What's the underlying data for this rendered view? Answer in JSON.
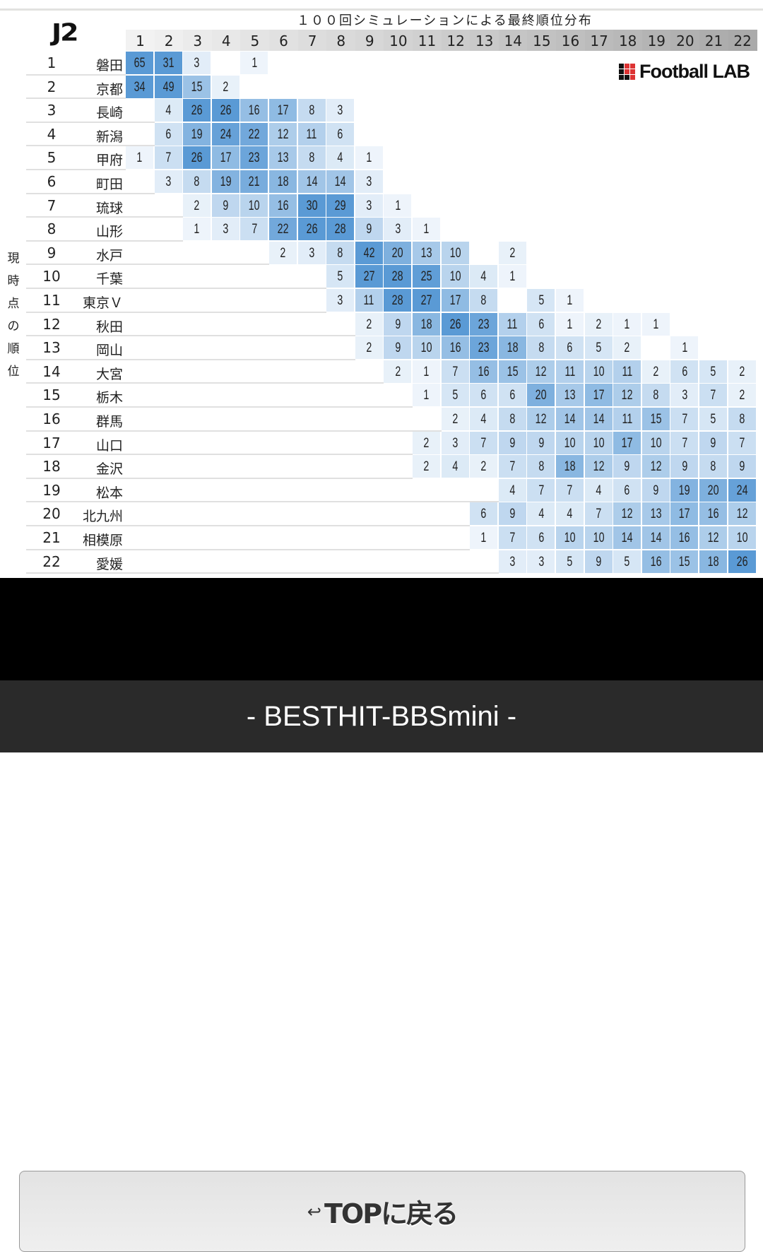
{
  "chart_data": {
    "type": "heatmap",
    "title": "１００回シミュレーションによる最終順位分布",
    "league_logo": "J2",
    "brand_logo": "Football LAB",
    "ylabel": "現時点の順位",
    "columns": [
      "1",
      "2",
      "3",
      "4",
      "5",
      "6",
      "7",
      "8",
      "9",
      "10",
      "11",
      "12",
      "13",
      "14",
      "15",
      "16",
      "17",
      "18",
      "19",
      "20",
      "21",
      "22"
    ],
    "color_low": "#f4f8fc",
    "color_high": "#5a9ad5",
    "rows": [
      {
        "rank": "1",
        "team": "磐田",
        "values": [
          65,
          31,
          3,
          null,
          1,
          null,
          null,
          null,
          null,
          null,
          null,
          null,
          null,
          null,
          null,
          null,
          null,
          null,
          null,
          null,
          null,
          null
        ]
      },
      {
        "rank": "2",
        "team": "京都",
        "values": [
          34,
          49,
          15,
          2,
          null,
          null,
          null,
          null,
          null,
          null,
          null,
          null,
          null,
          null,
          null,
          null,
          null,
          null,
          null,
          null,
          null,
          null
        ]
      },
      {
        "rank": "3",
        "team": "長崎",
        "values": [
          null,
          4,
          26,
          26,
          16,
          17,
          8,
          3,
          null,
          null,
          null,
          null,
          null,
          null,
          null,
          null,
          null,
          null,
          null,
          null,
          null,
          null
        ]
      },
      {
        "rank": "4",
        "team": "新潟",
        "values": [
          null,
          6,
          19,
          24,
          22,
          12,
          11,
          6,
          null,
          null,
          null,
          null,
          null,
          null,
          null,
          null,
          null,
          null,
          null,
          null,
          null,
          null
        ]
      },
      {
        "rank": "5",
        "team": "甲府",
        "values": [
          1,
          7,
          26,
          17,
          23,
          13,
          8,
          4,
          1,
          null,
          null,
          null,
          null,
          null,
          null,
          null,
          null,
          null,
          null,
          null,
          null,
          null
        ]
      },
      {
        "rank": "6",
        "team": "町田",
        "values": [
          null,
          3,
          8,
          19,
          21,
          18,
          14,
          14,
          3,
          null,
          null,
          null,
          null,
          null,
          null,
          null,
          null,
          null,
          null,
          null,
          null,
          null
        ]
      },
      {
        "rank": "7",
        "team": "琉球",
        "values": [
          null,
          null,
          2,
          9,
          10,
          16,
          30,
          29,
          3,
          1,
          null,
          null,
          null,
          null,
          null,
          null,
          null,
          null,
          null,
          null,
          null,
          null
        ]
      },
      {
        "rank": "8",
        "team": "山形",
        "values": [
          null,
          null,
          1,
          3,
          7,
          22,
          26,
          28,
          9,
          3,
          1,
          null,
          null,
          null,
          null,
          null,
          null,
          null,
          null,
          null,
          null,
          null
        ]
      },
      {
        "rank": "9",
        "team": "水戸",
        "values": [
          null,
          null,
          null,
          null,
          null,
          2,
          3,
          8,
          42,
          20,
          13,
          10,
          null,
          2,
          null,
          null,
          null,
          null,
          null,
          null,
          null,
          null
        ]
      },
      {
        "rank": "10",
        "team": "千葉",
        "values": [
          null,
          null,
          null,
          null,
          null,
          null,
          null,
          5,
          27,
          28,
          25,
          10,
          4,
          1,
          null,
          null,
          null,
          null,
          null,
          null,
          null,
          null
        ]
      },
      {
        "rank": "11",
        "team": "東京Ｖ",
        "values": [
          null,
          null,
          null,
          null,
          null,
          null,
          null,
          3,
          11,
          28,
          27,
          17,
          8,
          null,
          5,
          1,
          null,
          null,
          null,
          null,
          null,
          null
        ]
      },
      {
        "rank": "12",
        "team": "秋田",
        "values": [
          null,
          null,
          null,
          null,
          null,
          null,
          null,
          null,
          2,
          9,
          18,
          26,
          23,
          11,
          6,
          1,
          2,
          1,
          1,
          null,
          null,
          null
        ]
      },
      {
        "rank": "13",
        "team": "岡山",
        "values": [
          null,
          null,
          null,
          null,
          null,
          null,
          null,
          null,
          2,
          9,
          10,
          16,
          23,
          18,
          8,
          6,
          5,
          2,
          null,
          1,
          null,
          null
        ]
      },
      {
        "rank": "14",
        "team": "大宮",
        "values": [
          null,
          null,
          null,
          null,
          null,
          null,
          null,
          null,
          null,
          2,
          1,
          7,
          16,
          15,
          12,
          11,
          10,
          11,
          2,
          6,
          5,
          2
        ]
      },
      {
        "rank": "15",
        "team": "栃木",
        "values": [
          null,
          null,
          null,
          null,
          null,
          null,
          null,
          null,
          null,
          null,
          1,
          5,
          6,
          6,
          20,
          13,
          17,
          12,
          8,
          3,
          7,
          2
        ]
      },
      {
        "rank": "16",
        "team": "群馬",
        "values": [
          null,
          null,
          null,
          null,
          null,
          null,
          null,
          null,
          null,
          null,
          null,
          2,
          4,
          8,
          12,
          14,
          14,
          11,
          15,
          7,
          5,
          8
        ]
      },
      {
        "rank": "17",
        "team": "山口",
        "values": [
          null,
          null,
          null,
          null,
          null,
          null,
          null,
          null,
          null,
          null,
          2,
          3,
          7,
          9,
          9,
          10,
          10,
          17,
          10,
          7,
          9,
          7
        ]
      },
      {
        "rank": "18",
        "team": "金沢",
        "values": [
          null,
          null,
          null,
          null,
          null,
          null,
          null,
          null,
          null,
          null,
          2,
          4,
          2,
          7,
          8,
          18,
          12,
          9,
          12,
          9,
          8,
          9
        ]
      },
      {
        "rank": "19",
        "team": "松本",
        "values": [
          null,
          null,
          null,
          null,
          null,
          null,
          null,
          null,
          null,
          null,
          null,
          null,
          null,
          4,
          7,
          7,
          4,
          6,
          9,
          19,
          20,
          24
        ]
      },
      {
        "rank": "20",
        "team": "北九州",
        "values": [
          null,
          null,
          null,
          null,
          null,
          null,
          null,
          null,
          null,
          null,
          null,
          null,
          6,
          9,
          4,
          4,
          7,
          12,
          13,
          17,
          16,
          12
        ]
      },
      {
        "rank": "21",
        "team": "相模原",
        "values": [
          null,
          null,
          null,
          null,
          null,
          null,
          null,
          null,
          null,
          null,
          null,
          null,
          1,
          7,
          6,
          10,
          10,
          14,
          14,
          16,
          12,
          10
        ]
      },
      {
        "rank": "22",
        "team": "愛媛",
        "values": [
          null,
          null,
          null,
          null,
          null,
          null,
          null,
          null,
          null,
          null,
          null,
          null,
          null,
          3,
          3,
          5,
          9,
          5,
          16,
          15,
          18,
          26
        ]
      }
    ]
  },
  "nav": {
    "back_icon": "return-arrow-icon",
    "back_arrow": "↩",
    "back_label": "TOPに戻る"
  },
  "footer": {
    "text": "- BESTHIT-BBSmini -"
  }
}
